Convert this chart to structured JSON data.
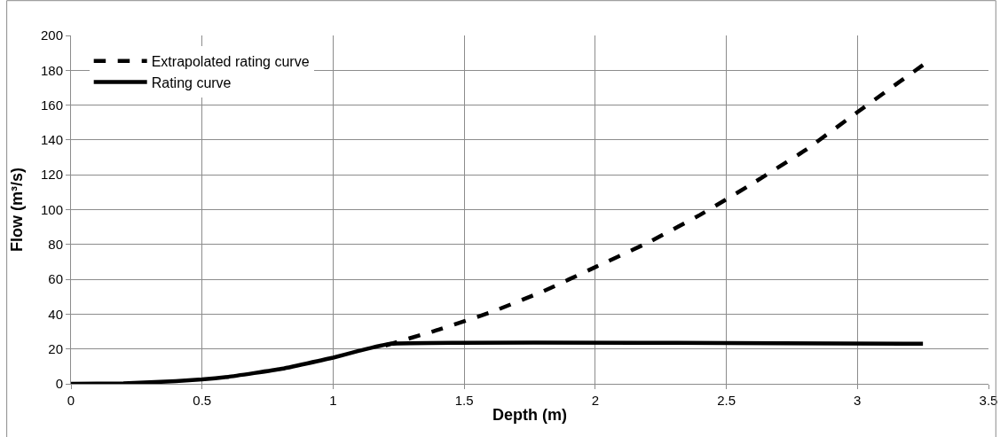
{
  "chart_data": {
    "type": "line",
    "xlabel": "Depth (m)",
    "ylabel": "Flow (m³/s)",
    "xlim": [
      0,
      3.5
    ],
    "xticks": [
      0,
      0.5,
      1,
      1.5,
      2,
      2.5,
      3,
      3.5
    ],
    "ylim": [
      0,
      200
    ],
    "yticks": [
      0,
      20,
      40,
      60,
      80,
      100,
      120,
      140,
      160,
      180,
      200
    ],
    "grid": true,
    "legend": "top left",
    "marker": "none",
    "series": [
      {
        "name": "Extrapolated rating curve",
        "color": "#000000",
        "line_style": "dashed",
        "x": [
          1.2,
          1.4,
          1.6,
          1.8,
          2.0,
          2.2,
          2.4,
          2.6,
          2.8,
          3.0,
          3.25
        ],
        "values": [
          22,
          31,
          41,
          53,
          67,
          81,
          97,
          115,
          134,
          156,
          183
        ]
      },
      {
        "name": "Rating curve",
        "color": "#000000",
        "line_style": "solid",
        "x": [
          0,
          0.2,
          0.4,
          0.5,
          0.6,
          0.8,
          1.0,
          1.1,
          1.22,
          3.25
        ],
        "values": [
          0,
          0.3,
          1.5,
          2.5,
          4,
          8.5,
          15,
          19,
          23,
          23
        ]
      }
    ]
  }
}
